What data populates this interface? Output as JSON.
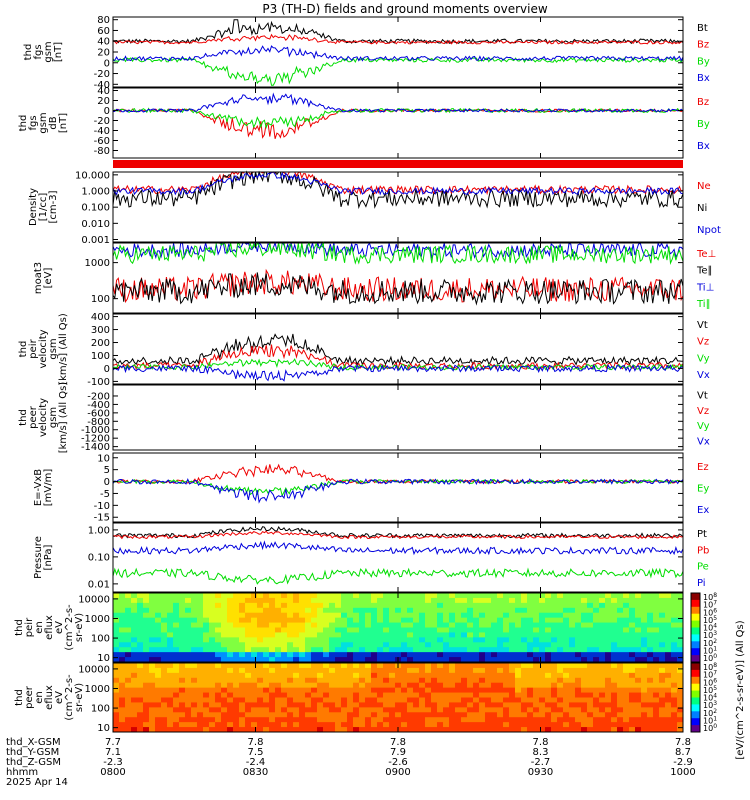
{
  "title": "P3 (TH-D) fields and ground moments overview",
  "colors": {
    "black": "#000000",
    "red": "#ee0000",
    "green": "#00dd00",
    "blue": "#0000dd"
  },
  "chart_data": [
    {
      "id": "fgs1",
      "type": "line",
      "ylabel": [
        "thd",
        "fgs",
        "gsm",
        "[nT]"
      ],
      "ylim": [
        -45,
        85
      ],
      "ticks": [
        "80",
        "60",
        "40",
        "20",
        "0",
        "-20",
        "-40"
      ],
      "tickvals": [
        80,
        60,
        40,
        20,
        0,
        -20,
        -40
      ],
      "legend": [
        {
          "name": "Bt",
          "color": "#000000"
        },
        {
          "name": "Bz",
          "color": "#ee0000"
        },
        {
          "name": "By",
          "color": "#00dd00"
        },
        {
          "name": "Bx",
          "color": "#0000dd"
        }
      ],
      "series": [
        {
          "name": "Bt",
          "color": "#000000",
          "baseline": 40,
          "noise": 4,
          "burst": 25,
          "spike": [
            0.215,
            80
          ]
        },
        {
          "name": "Bz",
          "color": "#ee0000",
          "baseline": 38,
          "noise": 3,
          "burst": 10
        },
        {
          "name": "By",
          "color": "#00dd00",
          "baseline": 5,
          "noise": 4,
          "burst": -35
        },
        {
          "name": "Bx",
          "color": "#0000dd",
          "baseline": 8,
          "noise": 4,
          "burst": 15
        }
      ]
    },
    {
      "id": "fgs2",
      "type": "line",
      "ylabel": [
        "thd",
        "fgs",
        "gsm",
        "dB",
        "[nT]"
      ],
      "ylim": [
        -95,
        45
      ],
      "ticks": [
        "40",
        "20",
        "0",
        "-20",
        "-40",
        "-60",
        "-80"
      ],
      "tickvals": [
        40,
        20,
        0,
        -20,
        -40,
        -60,
        -80
      ],
      "legend": [
        {
          "name": "Bz",
          "color": "#ee0000"
        },
        {
          "name": "By",
          "color": "#00dd00"
        },
        {
          "name": "Bx",
          "color": "#0000dd"
        }
      ],
      "series": [
        {
          "name": "Bz",
          "color": "#ee0000",
          "baseline": 0,
          "noise": 3,
          "burst": -40
        },
        {
          "name": "By",
          "color": "#00dd00",
          "baseline": 0,
          "noise": 4,
          "burst": -25
        },
        {
          "name": "Bx",
          "color": "#0000dd",
          "baseline": 0,
          "noise": 3,
          "burst": 25
        }
      ]
    },
    {
      "id": "bar",
      "type": "bar",
      "color": "#ee0000"
    },
    {
      "id": "density",
      "type": "line",
      "log": true,
      "ylabel": [
        "Density",
        "[1/cc]",
        "[cm-3]"
      ],
      "ylim": [
        0.0007,
        15
      ],
      "ticks": [
        "10.000",
        "1.000",
        "0.100",
        "0.010",
        "0.001"
      ],
      "tickvals": [
        10,
        1,
        0.1,
        0.01,
        0.001
      ],
      "legend": [
        {
          "name": "Ne",
          "color": "#ee0000"
        },
        {
          "name": "Ni",
          "color": "#000000"
        },
        {
          "name": "Npot",
          "color": "#0000dd"
        }
      ],
      "series": [
        {
          "name": "Ne",
          "color": "#ee0000",
          "baseline": 1.2,
          "noise": 0.25,
          "burst": 2.5
        },
        {
          "name": "Ni",
          "color": "#000000",
          "baseline": 0.35,
          "noise": 0.55,
          "burst": 3.0
        },
        {
          "name": "Npot",
          "color": "#0000dd",
          "baseline": 1.0,
          "noise": 0.2,
          "burst": 2.0
        }
      ]
    },
    {
      "id": "temp",
      "type": "line",
      "log": true,
      "ylabel": [
        "moat3",
        "[eV]"
      ],
      "ylim": [
        40,
        3500
      ],
      "ticks": [
        "1000",
        "100"
      ],
      "tickvals": [
        1000,
        100
      ],
      "legend": [
        {
          "name": "Te⊥",
          "color": "#ee0000"
        },
        {
          "name": "Te∥",
          "color": "#000000"
        },
        {
          "name": "Ti⊥",
          "color": "#0000dd"
        },
        {
          "name": "Ti∥",
          "color": "#00dd00"
        }
      ],
      "series": [
        {
          "name": "Ti⊥",
          "color": "#0000dd",
          "baseline": 2200,
          "noise": 0.2,
          "burst": 0.3
        },
        {
          "name": "Ti∥",
          "color": "#00dd00",
          "baseline": 1700,
          "noise": 0.25,
          "burst": 0.35
        },
        {
          "name": "Te⊥",
          "color": "#ee0000",
          "baseline": 180,
          "noise": 0.35,
          "burst": 0.4
        },
        {
          "name": "Te∥",
          "color": "#000000",
          "baseline": 160,
          "noise": 0.35,
          "burst": 0.4
        }
      ]
    },
    {
      "id": "peir",
      "type": "line",
      "ylabel": [
        "thd",
        "peir",
        "velocity",
        "gsm",
        "[km/s] (All Qs)"
      ],
      "ylim": [
        -120,
        420
      ],
      "ticks": [
        "400",
        "300",
        "200",
        "100",
        "0",
        "-100"
      ],
      "tickvals": [
        400,
        300,
        200,
        100,
        0,
        -100
      ],
      "legend": [
        {
          "name": "Vt",
          "color": "#000000"
        },
        {
          "name": "Vz",
          "color": "#ee0000"
        },
        {
          "name": "Vy",
          "color": "#00dd00"
        },
        {
          "name": "Vx",
          "color": "#0000dd"
        }
      ],
      "series": [
        {
          "name": "Vt",
          "color": "#000000",
          "baseline": 60,
          "noise": 30,
          "burst": 150
        },
        {
          "name": "Vz",
          "color": "#ee0000",
          "baseline": 20,
          "noise": 25,
          "burst": 120
        },
        {
          "name": "Vy",
          "color": "#00dd00",
          "baseline": 10,
          "noise": 20,
          "burst": 40
        },
        {
          "name": "Vx",
          "color": "#0000dd",
          "baseline": 0,
          "noise": 25,
          "burst": -60
        }
      ]
    },
    {
      "id": "peer",
      "type": "empty",
      "ylabel": [
        "thd",
        "peer",
        "velocity",
        "gsm",
        "[km/s] (All Qs)"
      ],
      "ylim": [
        -1480,
        60
      ],
      "ticks": [
        "-200",
        "-400",
        "-600",
        "-800",
        "-1000",
        "-1200",
        "-1400"
      ],
      "tickvals": [
        -200,
        -400,
        -600,
        -800,
        -1000,
        -1200,
        -1400
      ],
      "legend": [
        {
          "name": "Vt",
          "color": "#000000"
        },
        {
          "name": "Vz",
          "color": "#ee0000"
        },
        {
          "name": "Vy",
          "color": "#00dd00"
        },
        {
          "name": "Vx",
          "color": "#0000dd"
        }
      ]
    },
    {
      "id": "efield",
      "type": "line",
      "ylabel": [
        "E=-VxB",
        "[mV/m]"
      ],
      "ylim": [
        -17,
        12
      ],
      "ticks": [
        "10",
        "5",
        "0",
        "-5",
        "-10",
        "-15"
      ],
      "tickvals": [
        10,
        5,
        0,
        -5,
        -10,
        -15
      ],
      "legend": [
        {
          "name": "Ez",
          "color": "#ee0000"
        },
        {
          "name": "Ey",
          "color": "#00dd00"
        },
        {
          "name": "Ex",
          "color": "#0000dd"
        }
      ],
      "series": [
        {
          "name": "Ez",
          "color": "#ee0000",
          "baseline": 0,
          "noise": 0.8,
          "burst": 5
        },
        {
          "name": "Ey",
          "color": "#00dd00",
          "baseline": 0,
          "noise": 0.8,
          "burst": -4
        },
        {
          "name": "Ex",
          "color": "#0000dd",
          "baseline": 0,
          "noise": 1.0,
          "burst": -6
        }
      ]
    },
    {
      "id": "pressure",
      "type": "line",
      "log": true,
      "ylabel": [
        "Pressure",
        "[nPa]"
      ],
      "ylim": [
        0.005,
        1.8
      ],
      "ticks": [
        "1.00",
        "0.10",
        "0.01"
      ],
      "tickvals": [
        1,
        0.1,
        0.01
      ],
      "legend": [
        {
          "name": "Pt",
          "color": "#000000"
        },
        {
          "name": "Pb",
          "color": "#ee0000"
        },
        {
          "name": "Pe",
          "color": "#00dd00"
        },
        {
          "name": "Pi",
          "color": "#0000dd"
        }
      ],
      "series": [
        {
          "name": "Pt",
          "color": "#000000",
          "baseline": 0.62,
          "noise": 0.08,
          "burst": 0.5
        },
        {
          "name": "Pb",
          "color": "#ee0000",
          "baseline": 0.55,
          "noise": 0.06,
          "burst": 0.3
        },
        {
          "name": "Pi",
          "color": "#0000dd",
          "baseline": 0.17,
          "noise": 0.12,
          "burst": 0.4
        },
        {
          "name": "Pe",
          "color": "#00dd00",
          "baseline": 0.025,
          "noise": 0.15,
          "burst": -0.5
        }
      ]
    },
    {
      "id": "specI",
      "type": "heatmap",
      "ylabel": [
        "thd",
        "peir",
        "en",
        "eflux",
        "eV",
        "(cm^2-s-",
        "sr-eV)"
      ],
      "ticks": [
        "10000",
        "1000",
        "100",
        "10"
      ],
      "tickvals": [
        10000,
        1000,
        100,
        10
      ],
      "ylim": [
        6,
        20000
      ],
      "log": true,
      "cbar": [
        "10^8",
        "10^7",
        "10^6",
        "10^5",
        "10^4",
        "10^3",
        "10^2",
        "10^1",
        "10^0"
      ]
    },
    {
      "id": "specE",
      "type": "heatmap",
      "ylabel": [
        "thd",
        "peer",
        "en",
        "eflux",
        "eV",
        "(cm^2-s-",
        "sr-eV)"
      ],
      "ticks": [
        "10000",
        "1000",
        "100",
        "10"
      ],
      "tickvals": [
        10000,
        1000,
        100,
        10
      ],
      "ylim": [
        6,
        20000
      ],
      "log": true,
      "cbar": [
        "10^8",
        "10^7",
        "10^6",
        "10^5",
        "10^4",
        "10^3",
        "10^2",
        "10^1",
        "10^0"
      ]
    }
  ],
  "colorbar_label": "[eV/(cm^2-s-sr-eV)] (All Qs)",
  "xaxis": {
    "rows": [
      {
        "label": "thd_X-GSM",
        "values": [
          "7.7",
          "7.8",
          "7.8",
          "7.8",
          "7.8"
        ]
      },
      {
        "label": "thd_Y-GSM",
        "values": [
          "7.1",
          "7.5",
          "7.9",
          "8.3",
          "8.7"
        ]
      },
      {
        "label": "thd_Z-GSM",
        "values": [
          "-2.3",
          "-2.4",
          "-2.6",
          "-2.7",
          "-2.9"
        ]
      },
      {
        "label": "hhmm",
        "values": [
          "0800",
          "0830",
          "0900",
          "0930",
          "1000"
        ]
      }
    ],
    "date": "2025 Apr 14"
  }
}
